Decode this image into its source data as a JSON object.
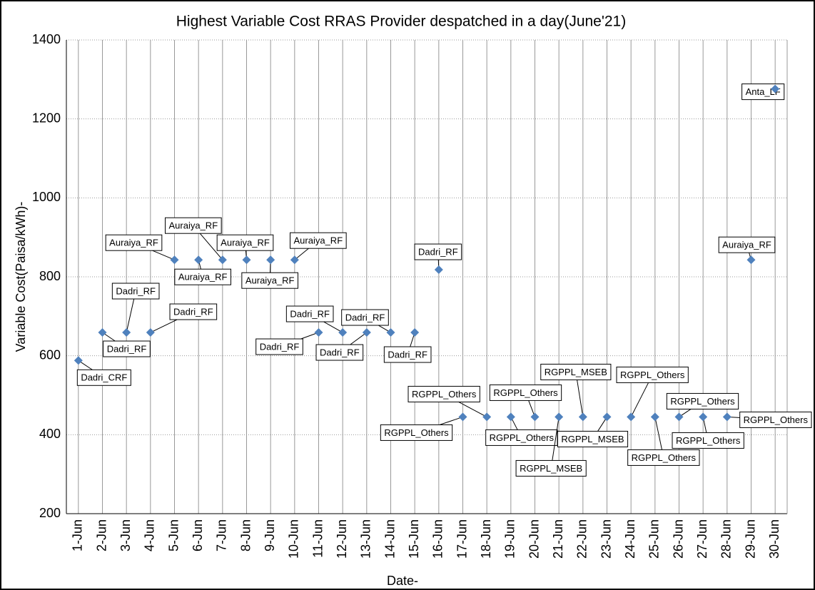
{
  "chart_data": {
    "type": "scatter",
    "title": "Highest Variable Cost RRAS Provider despatched in a day(June'21)",
    "x_label": "Date-",
    "y_label": "Variable Cost(Paisa/kWh)-",
    "categories": [
      "1-Jun",
      "2-Jun",
      "3-Jun",
      "4-Jun",
      "5-Jun",
      "6-Jun",
      "7-Jun",
      "8-Jun",
      "9-Jun",
      "10-Jun",
      "11-Jun",
      "12-Jun",
      "13-Jun",
      "14-Jun",
      "15-Jun",
      "16-Jun",
      "17-Jun",
      "18-Jun",
      "19-Jun",
      "20-Jun",
      "21-Jun",
      "22-Jun",
      "23-Jun",
      "24-Jun",
      "25-Jun",
      "26-Jun",
      "27-Jun",
      "28-Jun",
      "29-Jun",
      "30-Jun"
    ],
    "values": [
      588,
      659,
      659,
      659,
      843,
      843,
      843,
      843,
      843,
      843,
      659,
      659,
      659,
      659,
      659,
      818,
      445,
      445,
      445,
      445,
      445,
      445,
      445,
      445,
      445,
      445,
      445,
      445,
      843,
      1276
    ],
    "point_labels": [
      "Dadri_CRF",
      "Dadri_RF",
      "Dadri_RF",
      "Dadri_RF",
      "Auraiya_RF",
      "Auraiya_RF",
      "Auraiya_RF",
      "Auraiya_RF",
      "Auraiya_RF",
      "Auraiya_RF",
      "Dadri_RF",
      "Dadri_RF",
      "Dadri_RF",
      "Dadri_RF",
      "Dadri_RF",
      "Dadri_RF",
      "RGPPL_Others",
      "RGPPL_Others",
      "RGPPL_Others",
      "RGPPL_Others",
      "RGPPL_MSEB",
      "RGPPL_MSEB",
      "RGPPL_MSEB",
      "RGPPL_Others",
      "RGPPL_Others",
      "RGPPL_Others",
      "RGPPL_Others",
      "RGPPL_Others",
      "Auraiya_RF",
      "Anta_LF"
    ],
    "color": "#4f81bd",
    "ylim": [
      200,
      1400
    ],
    "yticks": [
      200,
      400,
      600,
      800,
      1000,
      1200,
      1400
    ],
    "grid": true
  }
}
